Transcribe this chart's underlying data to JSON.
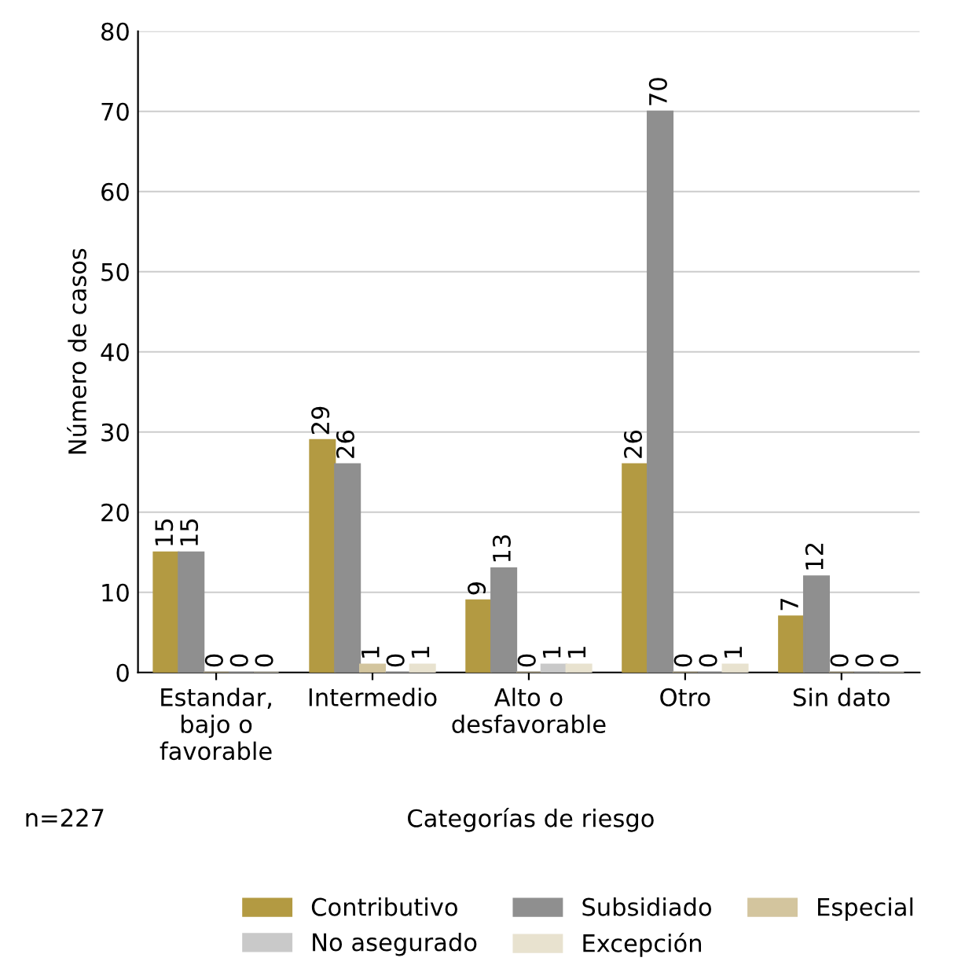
{
  "chart_data": {
    "type": "bar",
    "xlabel": "Categorías de riesgo",
    "ylabel": "Número de casos",
    "categories": [
      "Estandar,\nbajo o\nfavorable",
      "Intermedio",
      "Alto o\ndesfavorable",
      "Otro",
      "Sin dato"
    ],
    "series": [
      {
        "name": "Contributivo",
        "color": "#b39a42",
        "values": [
          15,
          29,
          9,
          26,
          7
        ]
      },
      {
        "name": "Subsidiado",
        "color": "#8f8f8f",
        "values": [
          15,
          26,
          13,
          70,
          12
        ]
      },
      {
        "name": "Especial",
        "color": "#d3c59e",
        "values": [
          0,
          1,
          0,
          0,
          0
        ]
      },
      {
        "name": "No asegurado",
        "color": "#c9c9c9",
        "values": [
          0,
          0,
          1,
          0,
          0
        ]
      },
      {
        "name": "Excepción",
        "color": "#e8e2cf",
        "values": [
          0,
          1,
          1,
          1,
          0
        ]
      }
    ],
    "ylim": [
      0,
      80
    ],
    "yticks": [
      0,
      10,
      20,
      30,
      40,
      50,
      60,
      70,
      80
    ],
    "grid": "y",
    "legend": "bottom",
    "data_labels": true,
    "annotations": [
      "n=227"
    ]
  }
}
